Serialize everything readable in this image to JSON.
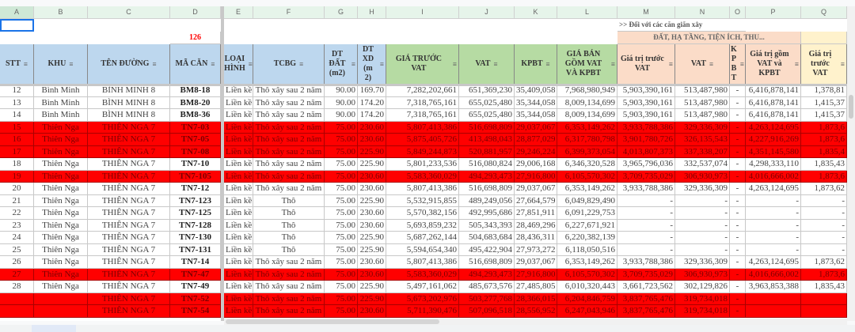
{
  "columns": [
    "A",
    "B",
    "C",
    "D",
    "E",
    "F",
    "G",
    "H",
    "I",
    "J",
    "K",
    "L",
    "M",
    "N",
    "O",
    "P",
    "Q"
  ],
  "top_rows": {
    "count_value": "126",
    "note": ">> Đối với các căn giãn xây",
    "group_header": "ĐẤT, HẠ TẦNG, TIỆN ÍCH, THU..."
  },
  "headers": [
    "STT",
    "KHU",
    "TÊN ĐƯỜNG",
    "MÃ CĂN",
    "LOẠI HÌNH",
    "TCBG",
    "DT ĐẤT (m2)",
    "DT XD (m 2)",
    "GIÁ TRƯỚC VAT",
    "VAT",
    "KPBT",
    "GIÁ BÁN GỒM VAT VÀ KPBT",
    "Giá trị trước VAT",
    "VAT",
    "K P B T",
    "Giá trị gồm VAT và KPBT",
    "Giá trị trước VAT"
  ],
  "colors": {
    "highlight_row": "#ff0000",
    "header_blue": "#bdd7ee",
    "header_green": "#b6dba3",
    "header_peach": "#fbdcc8",
    "header_yellow": "#fff2cc",
    "count_text": "#ff0000"
  },
  "rows": [
    {
      "highlight": false,
      "cells": [
        "12",
        "Bình Minh",
        "BÌNH MINH 8",
        "BM8-18",
        "Liền kề",
        "Thô xây sau 2 năm",
        "90.00",
        "169.70",
        "7,282,202,661",
        "651,369,230",
        "35,409,058",
        "7,968,980,949",
        "5,903,390,161",
        "513,487,980",
        "-",
        "6,416,878,141",
        "1,378,81"
      ]
    },
    {
      "highlight": false,
      "cells": [
        "13",
        "Bình Minh",
        "BÌNH MINH 8",
        "BM8-20",
        "Liền kề",
        "Thô xây sau 2 năm",
        "90.00",
        "174.20",
        "7,318,765,161",
        "655,025,480",
        "35,344,058",
        "8,009,134,699",
        "5,903,390,161",
        "513,487,980",
        "-",
        "6,416,878,141",
        "1,415,37"
      ]
    },
    {
      "highlight": false,
      "cells": [
        "14",
        "Bình Minh",
        "BÌNH MINH 8",
        "BM8-36",
        "Liền kề",
        "Thô xây sau 2 năm",
        "90.00",
        "174.20",
        "7,318,765,161",
        "655,025,480",
        "35,344,058",
        "8,009,134,699",
        "5,903,390,161",
        "513,487,980",
        "-",
        "6,416,878,141",
        "1,415,37"
      ]
    },
    {
      "highlight": true,
      "cells": [
        "15",
        "Thiên Nga",
        "THIÊN NGA 7",
        "TN7-03",
        "Liền kề",
        "Thô xây sau 2 năm",
        "75.00",
        "230.60",
        "5,807,413,386",
        "516,698,809",
        "29,037,067",
        "6,353,149,262",
        "3,933,788,386",
        "329,336,309",
        "-",
        "4,263,124,695",
        "1,873,6"
      ]
    },
    {
      "highlight": true,
      "cells": [
        "16",
        "Thiên Nga",
        "THIÊN NGA 7",
        "TN7-05",
        "Liền kề",
        "Thô xây sau 2 năm",
        "75.00",
        "230.60",
        "5,875,405,726",
        "413,498,043",
        "28,877,029",
        "6,317,780,798",
        "3,901,780,726",
        "326,135,543",
        "-",
        "4,227,916,269",
        "1,873,6"
      ]
    },
    {
      "highlight": true,
      "cells": [
        "17",
        "Thiên Nga",
        "THIÊN NGA 7",
        "TN7-08",
        "Liền kề",
        "Thô xây sau 2 năm",
        "75.00",
        "225.90",
        "5,849,244,873",
        "520,881,957",
        "29,246,224",
        "6,399,373,054",
        "4,013,807,373",
        "337,338,207",
        "-",
        "4,351,145,580",
        "1,835,4"
      ]
    },
    {
      "highlight": false,
      "cells": [
        "18",
        "Thiên Nga",
        "THIÊN NGA 7",
        "TN7-10",
        "Liền kề",
        "Thô xây sau 2 năm",
        "75.00",
        "225.90",
        "5,801,233,536",
        "516,080,824",
        "29,006,168",
        "6,346,320,528",
        "3,965,796,036",
        "332,537,074",
        "-",
        "4,298,333,110",
        "1,835,43"
      ]
    },
    {
      "highlight": true,
      "cells": [
        "19",
        "Thiên Nga",
        "THIÊN NGA 7",
        "TN7-105",
        "Liền kề",
        "Thô xây sau 2 năm",
        "75.00",
        "230.60",
        "5,583,360,029",
        "494,293,473",
        "27,916,800",
        "6,105,570,302",
        "3,709,735,029",
        "306,930,973",
        "-",
        "4,016,666,002",
        "1,873,6"
      ]
    },
    {
      "highlight": false,
      "cells": [
        "20",
        "Thiên Nga",
        "THIÊN NGA 7",
        "TN7-12",
        "Liền kề",
        "Thô xây sau 2 năm",
        "75.00",
        "230.60",
        "5,807,413,386",
        "516,698,809",
        "29,037,067",
        "6,353,149,262",
        "3,933,788,386",
        "329,336,309",
        "-",
        "4,263,124,695",
        "1,873,62"
      ]
    },
    {
      "highlight": false,
      "cells": [
        "21",
        "Thiên Nga",
        "THIÊN NGA 7",
        "TN7-123",
        "Liền kề",
        "Thô",
        "75.00",
        "225.90",
        "5,532,915,855",
        "489,249,056",
        "27,664,579",
        "6,049,829,490",
        "-",
        "-",
        "-",
        "-",
        "-"
      ]
    },
    {
      "highlight": false,
      "cells": [
        "22",
        "Thiên Nga",
        "THIÊN NGA 7",
        "TN7-125",
        "Liền kề",
        "Thô",
        "75.00",
        "230.60",
        "5,570,382,156",
        "492,995,686",
        "27,851,911",
        "6,091,229,753",
        "-",
        "-",
        "-",
        "-",
        "-"
      ]
    },
    {
      "highlight": false,
      "cells": [
        "23",
        "Thiên Nga",
        "THIÊN NGA 7",
        "TN7-128",
        "Liền kề",
        "Thô",
        "75.00",
        "230.60",
        "5,693,859,232",
        "505,343,393",
        "28,469,296",
        "6,227,671,921",
        "-",
        "-",
        "-",
        "-",
        "-"
      ]
    },
    {
      "highlight": false,
      "cells": [
        "24",
        "Thiên Nga",
        "THIÊN NGA 7",
        "TN7-130",
        "Liền kề",
        "Thô",
        "75.00",
        "225.90",
        "5,687,262,144",
        "504,683,684",
        "28,436,311",
        "6,220,382,139",
        "-",
        "-",
        "-",
        "-",
        "-"
      ]
    },
    {
      "highlight": false,
      "cells": [
        "25",
        "Thiên Nga",
        "THIÊN NGA 7",
        "TN7-131",
        "Liền kề",
        "Thô",
        "75.00",
        "225.90",
        "5,594,654,340",
        "495,422,904",
        "27,973,272",
        "6,118,050,516",
        "-",
        "-",
        "-",
        "-",
        "-"
      ]
    },
    {
      "highlight": false,
      "cells": [
        "26",
        "Thiên Nga",
        "THIÊN NGA 7",
        "TN7-14",
        "Liền kề",
        "Thô xây sau 2 năm",
        "75.00",
        "230.60",
        "5,807,413,386",
        "516,698,809",
        "29,037,067",
        "6,353,149,262",
        "3,933,788,386",
        "329,336,309",
        "-",
        "4,263,124,695",
        "1,873,62"
      ]
    },
    {
      "highlight": true,
      "cells": [
        "27",
        "Thiên Nga",
        "THIÊN NGA 7",
        "TN7-47",
        "Liền kề",
        "Thô xây sau 2 năm",
        "75.00",
        "230.60",
        "5,583,360,029",
        "494,293,473",
        "27,916,800",
        "6,105,570,302",
        "3,709,735,029",
        "306,930,973",
        "-",
        "4,016,666,002",
        "1,873,6"
      ]
    },
    {
      "highlight": false,
      "cells": [
        "28",
        "Thiên Nga",
        "THIÊN NGA 7",
        "TN7-49",
        "Liền kề",
        "Thô xây sau 2 năm",
        "75.00",
        "225.90",
        "5,497,161,062",
        "485,673,576",
        "27,485,805",
        "6,010,320,443",
        "3,661,723,562",
        "302,129,826",
        "-",
        "3,963,853,388",
        "1,835,43"
      ]
    },
    {
      "highlight": true,
      "cells": [
        "",
        "",
        "THIÊN NGA 7",
        "TN7-52",
        "Liền kề",
        "Thô xây sau 2 năm",
        "75.00",
        "225.90",
        "5,673,202,976",
        "503,277,768",
        "28,366,015",
        "6,204,846,759",
        "3,837,765,476",
        "319,734,018",
        "-",
        "",
        ""
      ]
    },
    {
      "highlight": true,
      "cells": [
        "",
        "",
        "THIÊN NGA 7",
        "TN7-54",
        "Liền kề",
        "Thô xây sau 2 năm",
        "75.00",
        "230.60",
        "5,711,390,476",
        "507,096,518",
        "28,556,952",
        "6,247,043,946",
        "3,837,765,476",
        "319,734,018",
        "-",
        "",
        ""
      ]
    }
  ]
}
